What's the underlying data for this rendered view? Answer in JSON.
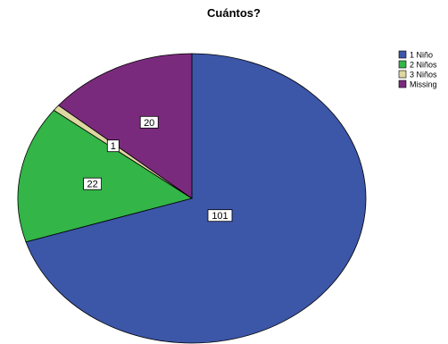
{
  "chart_data": {
    "type": "pie",
    "title": "Cuántos?",
    "categories": [
      "1 Niño",
      "2 Niños",
      "3 Niños",
      "Missing"
    ],
    "values": [
      101,
      22,
      1,
      20
    ],
    "colors": [
      "#3c56a8",
      "#33b548",
      "#ddd7a0",
      "#7a2a7c"
    ],
    "start_angle_deg": 0,
    "direction": "clockwise",
    "legend_position": "top-right",
    "data_labels": [
      "101",
      "22",
      "1",
      "20"
    ]
  }
}
